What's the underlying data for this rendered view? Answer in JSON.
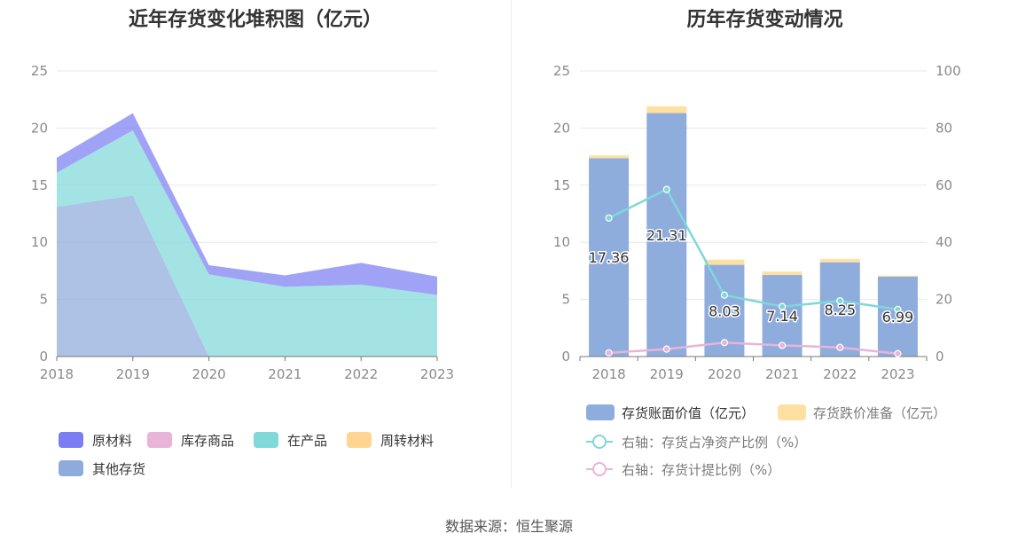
{
  "source_text": "数据来源：恒生聚源",
  "chart_data": [
    {
      "type": "area",
      "stacked": true,
      "title": "近年存货变化堆积图（亿元）",
      "x": [
        "2018",
        "2019",
        "2020",
        "2021",
        "2022",
        "2023"
      ],
      "ylim": [
        0,
        25
      ],
      "yticks": [
        "0",
        "5",
        "10",
        "15",
        "20",
        "25"
      ],
      "grid": true,
      "legend_position": "bottom-left",
      "series": [
        {
          "name": "其他存货",
          "values": [
            13.1,
            14.1,
            0,
            0,
            0,
            0
          ],
          "color": "#8faadc"
        },
        {
          "name": "周转材料",
          "values": [
            0,
            0,
            0,
            0,
            0,
            0
          ],
          "color": "#ffd591"
        },
        {
          "name": "在产品",
          "values": [
            3.0,
            5.7,
            7.2,
            6.1,
            6.3,
            5.4
          ],
          "color": "#80d8d8"
        },
        {
          "name": "库存商品",
          "values": [
            0,
            0,
            0,
            0,
            0,
            0
          ],
          "color": "#e8b4d8"
        },
        {
          "name": "原材料",
          "values": [
            1.3,
            1.5,
            0.8,
            1.0,
            1.9,
            1.6
          ],
          "color": "#7b7ef2"
        }
      ],
      "legend": [
        {
          "name": "原材料",
          "color": "#7b7ef2"
        },
        {
          "name": "库存商品",
          "color": "#e8b4d8"
        },
        {
          "name": "在产品",
          "color": "#80d8d8"
        },
        {
          "name": "周转材料",
          "color": "#ffd591"
        },
        {
          "name": "其他存货",
          "color": "#8faadc"
        }
      ]
    },
    {
      "type": "bar",
      "stacked": true,
      "title": "历年存货变动情况",
      "x": [
        "2018",
        "2019",
        "2020",
        "2021",
        "2022",
        "2023"
      ],
      "ylim": [
        0,
        25
      ],
      "yticks": [
        "0",
        "5",
        "10",
        "15",
        "20",
        "25"
      ],
      "y2lim": [
        0,
        100
      ],
      "y2ticks": [
        "0",
        "20",
        "40",
        "60",
        "80",
        "100"
      ],
      "grid": true,
      "legend_position": "bottom",
      "bar_series": [
        {
          "name": "存货账面价值（亿元）",
          "values": [
            17.36,
            21.31,
            8.03,
            7.14,
            8.25,
            6.99
          ],
          "labels": [
            "17.36",
            "21.31",
            "8.03",
            "7.14",
            "8.25",
            "6.99"
          ],
          "color": "#8eaddc"
        },
        {
          "name": "存货跌价准备（亿元）",
          "values": [
            0.25,
            0.6,
            0.45,
            0.3,
            0.3,
            0.1
          ],
          "color": "#ffe0a3"
        }
      ],
      "line_series": [
        {
          "name": "右轴：存货占净资产比例（%）",
          "values": [
            48.5,
            58.5,
            21.5,
            17.5,
            19.5,
            16.5
          ],
          "color": "#7fd7da"
        },
        {
          "name": "右轴：存货计提比例（%）",
          "values": [
            1.3,
            2.6,
            4.9,
            3.9,
            3.2,
            1.0
          ],
          "color": "#e8b4d8"
        }
      ]
    }
  ]
}
